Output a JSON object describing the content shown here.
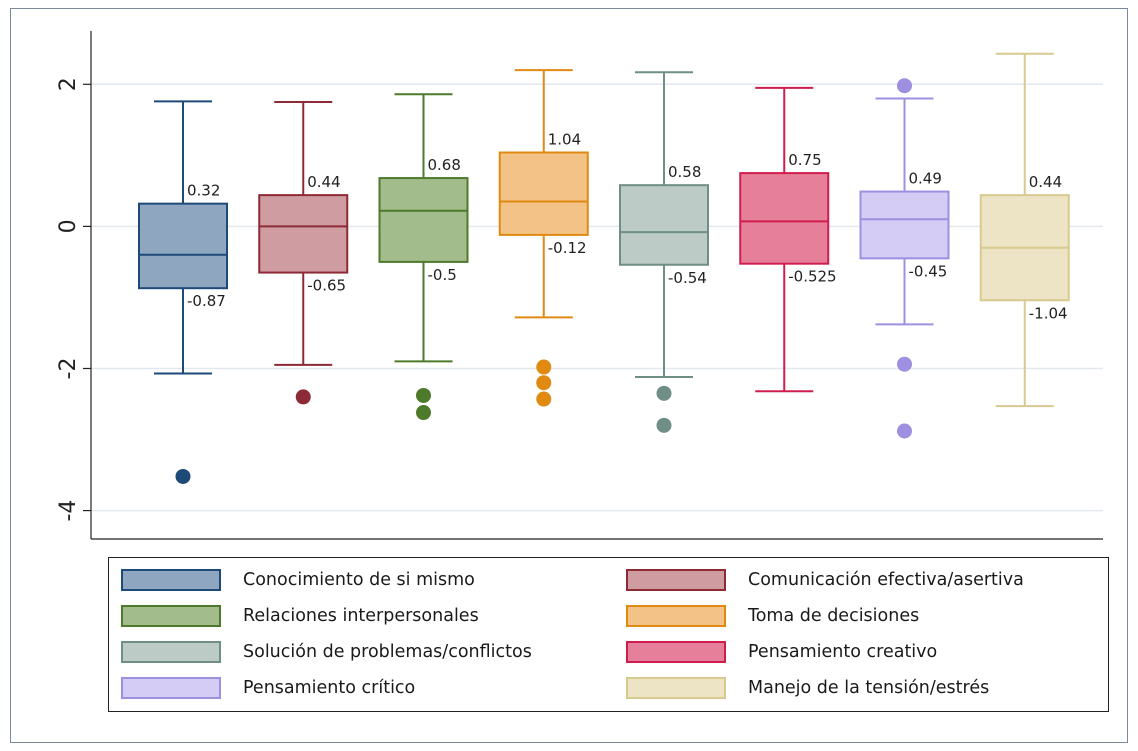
{
  "chart_data": {
    "type": "box",
    "ylim": [
      -4.4,
      2.75
    ],
    "yticks": [
      {
        "value": 2,
        "label": "2"
      },
      {
        "value": 0,
        "label": "0"
      },
      {
        "value": -2,
        "label": "-2"
      },
      {
        "value": -4,
        "label": "-4"
      }
    ],
    "grid": true,
    "legend_position": "bottom",
    "series": [
      {
        "name": "Conocimiento de si mismo",
        "stroke": "#1e4a78",
        "fill": "#8ea6bf",
        "whisker_low": -2.07,
        "q1": -0.87,
        "median": -0.4,
        "q3": 0.32,
        "whisker_high": 1.76,
        "outliers": [
          -3.52
        ],
        "q3_label": "0.32",
        "q1_label": "-0.87"
      },
      {
        "name": "Comunicación efectiva/asertiva",
        "stroke": "#8e2a35",
        "fill": "#cf9ca2",
        "whisker_low": -1.95,
        "q1": -0.65,
        "median": 0.0,
        "q3": 0.44,
        "whisker_high": 1.75,
        "outliers": [
          -2.4
        ],
        "q3_label": "0.44",
        "q1_label": "-0.65"
      },
      {
        "name": "Relaciones interpersonales",
        "stroke": "#4e7a2c",
        "fill": "#a3bc8c",
        "whisker_low": -1.9,
        "q1": -0.5,
        "median": 0.22,
        "q3": 0.68,
        "whisker_high": 1.86,
        "outliers": [
          -2.38,
          -2.62
        ],
        "q3_label": "0.68",
        "q1_label": "-0.5"
      },
      {
        "name": "Toma de decisiones",
        "stroke": "#e08a12",
        "fill": "#f2c286",
        "whisker_low": -1.28,
        "q1": -0.12,
        "median": 0.35,
        "q3": 1.04,
        "whisker_high": 2.2,
        "outliers": [
          -1.98,
          -2.2,
          -2.43
        ],
        "q3_label": "1.04",
        "q1_label": "-0.12"
      },
      {
        "name": "Solución de problemas/conflictos",
        "stroke": "#6e8e86",
        "fill": "#bccbc6",
        "whisker_low": -2.12,
        "q1": -0.54,
        "median": -0.08,
        "q3": 0.58,
        "whisker_high": 2.17,
        "outliers": [
          -2.35,
          -2.8
        ],
        "q3_label": "0.58",
        "q1_label": "-0.54"
      },
      {
        "name": "Pensamiento creativo",
        "stroke": "#cf1e4e",
        "fill": "#e6809a",
        "whisker_low": -2.32,
        "q1": -0.525,
        "median": 0.07,
        "q3": 0.75,
        "whisker_high": 1.95,
        "outliers": [],
        "q3_label": "0.75",
        "q1_label": "-0.525"
      },
      {
        "name": "Pensamiento crítico",
        "stroke": "#9e8fe0",
        "fill": "#d4ccf4",
        "whisker_low": -1.38,
        "q1": -0.45,
        "median": 0.1,
        "q3": 0.49,
        "whisker_high": 1.8,
        "outliers": [
          1.98,
          -1.94,
          -2.88
        ],
        "q3_label": "0.49",
        "q1_label": "-0.45"
      },
      {
        "name": "Manejo de la tensión/estrés",
        "stroke": "#d8c98e",
        "fill": "#ece4c4",
        "whisker_low": -2.53,
        "q1": -1.04,
        "median": -0.3,
        "q3": 0.44,
        "whisker_high": 2.43,
        "outliers": [],
        "q3_label": "0.44",
        "q1_label": "-1.04"
      }
    ]
  }
}
